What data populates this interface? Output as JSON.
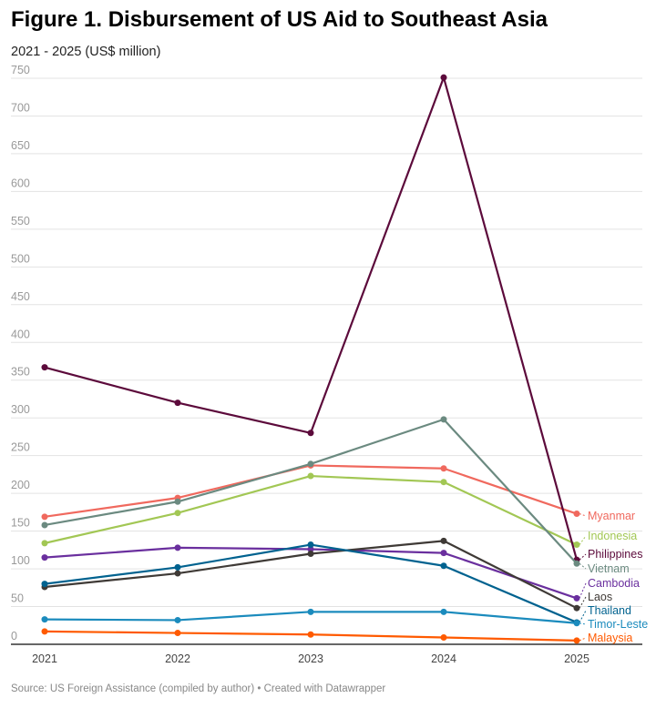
{
  "chart_data": {
    "type": "line",
    "title": "Figure 1. Disbursement of US Aid to Southeast Asia",
    "subtitle": "2021 - 2025 (US$ million)",
    "source": "Source: US Foreign Assistance (compiled by author) • Created with Datawrapper",
    "x": [
      "2021",
      "2022",
      "2023",
      "2024",
      "2025"
    ],
    "ylim": [
      0,
      750
    ],
    "yticks": [
      0,
      50,
      100,
      150,
      200,
      250,
      300,
      350,
      400,
      450,
      500,
      550,
      600,
      650,
      700,
      750
    ],
    "grid": true,
    "legend": "direct labels at line ends (right)",
    "series": [
      {
        "name": "Myanmar",
        "color": "#f0695e",
        "values": [
          169,
          194,
          237,
          233,
          173
        ]
      },
      {
        "name": "Indonesia",
        "color": "#a2c754",
        "values": [
          134,
          174,
          223,
          215,
          132
        ]
      },
      {
        "name": "Philippines",
        "color": "#5c0a3b",
        "values": [
          367,
          320,
          280,
          751,
          112
        ]
      },
      {
        "name": "Vietnam",
        "color": "#6b8a80",
        "values": [
          158,
          189,
          239,
          298,
          107
        ]
      },
      {
        "name": "Cambodia",
        "color": "#6a2f9e",
        "values": [
          115,
          128,
          126,
          121,
          61
        ]
      },
      {
        "name": "Laos",
        "color": "#3f3a36",
        "values": [
          76,
          94,
          120,
          137,
          48
        ]
      },
      {
        "name": "Thailand",
        "color": "#00628f",
        "values": [
          80,
          102,
          132,
          104,
          29
        ]
      },
      {
        "name": "Timor-Leste",
        "color": "#1b8bbd",
        "values": [
          33,
          32,
          43,
          43,
          28
        ]
      },
      {
        "name": "Malaysia",
        "color": "#ff5a00",
        "values": [
          17,
          15,
          13,
          9,
          5
        ]
      }
    ]
  }
}
